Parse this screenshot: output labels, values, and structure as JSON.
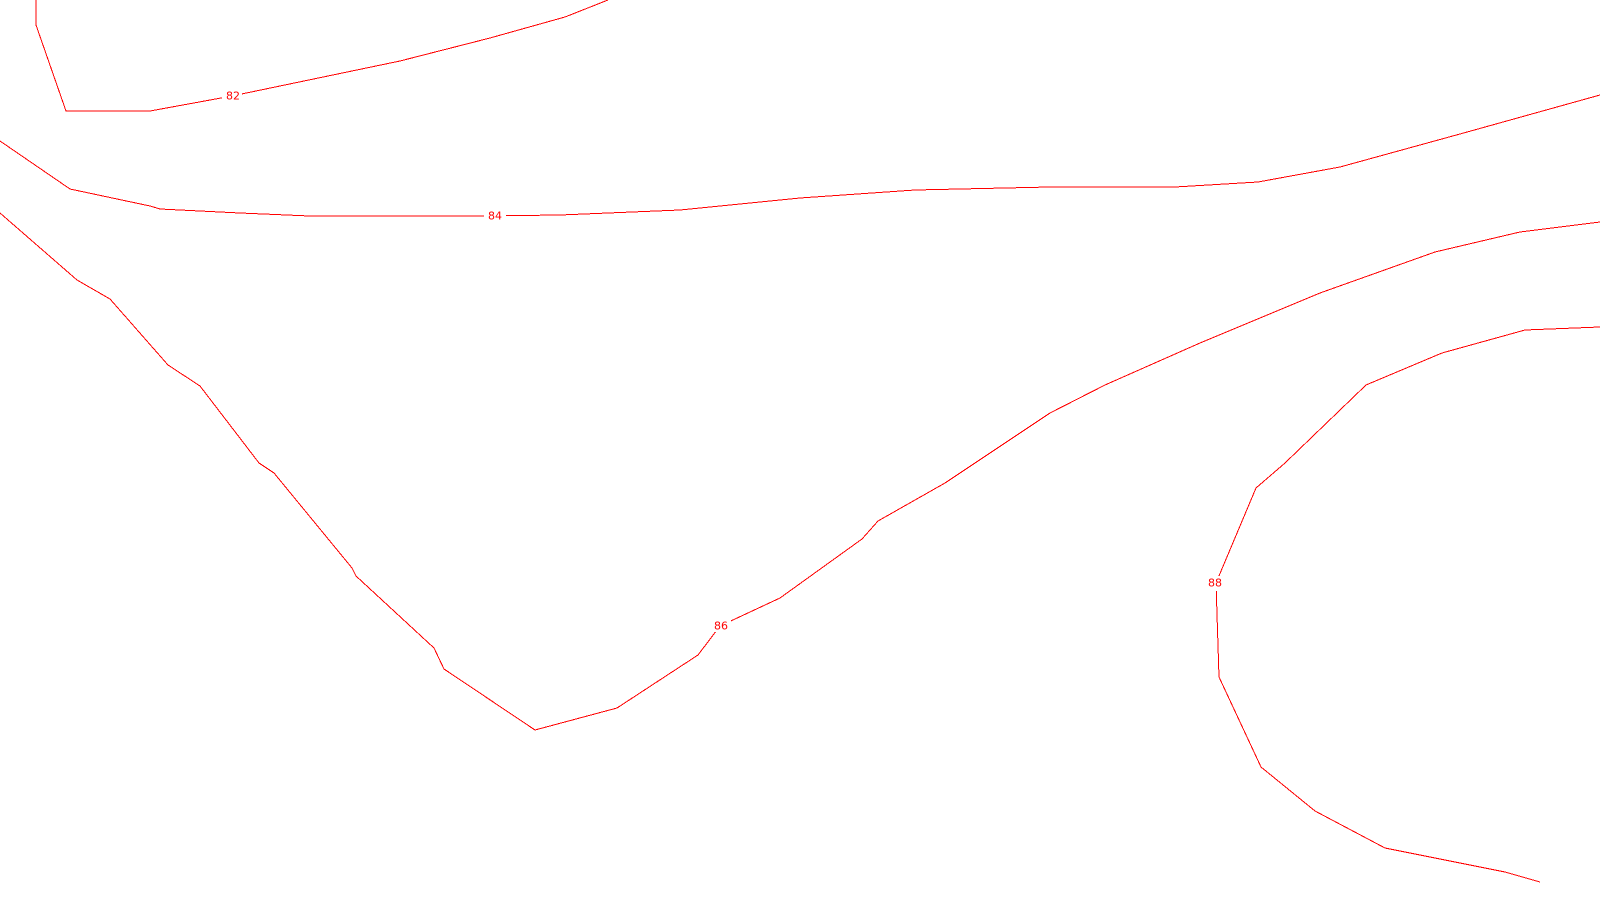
{
  "map": {
    "line_color": "#ff0000",
    "background_color": "#ffffff",
    "contours": [
      {
        "id": "82",
        "label": "82"
      },
      {
        "id": "84",
        "label": "84"
      },
      {
        "id": "86",
        "label": "86"
      },
      {
        "id": "88",
        "label": "88"
      }
    ]
  }
}
